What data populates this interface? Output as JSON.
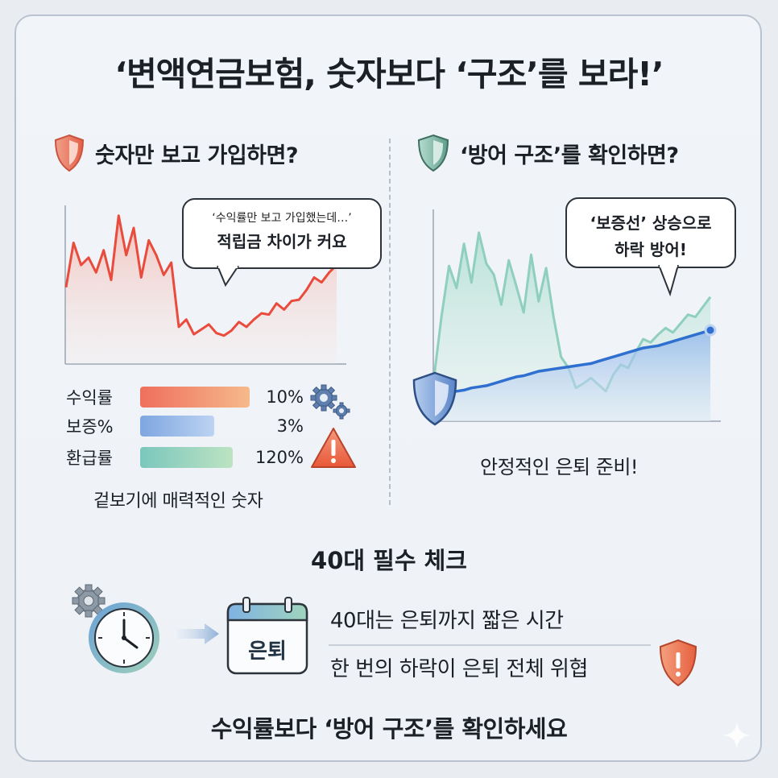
{
  "title": "‘변액연금보험, 숫자보다 ‘구조’를 보라!’",
  "left_panel": {
    "heading": "숫자만 보고 가입하면?",
    "bubble_line1": "‘수익률만 보고 가입했는데…’",
    "bubble_line2": "적립금 차이가 커요",
    "bars": [
      {
        "label": "수익률",
        "value_text": "10%",
        "fill": 0.97,
        "color_from": "#ef6f5e",
        "color_to": "#f6b98a"
      },
      {
        "label": "보증%",
        "value_text": "3%",
        "fill": 0.66,
        "color_from": "#7ea6e0",
        "color_to": "#bcd3f2"
      },
      {
        "label": "환급률",
        "value_text": "120%",
        "fill": 0.82,
        "color_from": "#7ac7bd",
        "color_to": "#bde3c2"
      }
    ],
    "caption": "겉보기에 매력적인 숫자",
    "colors": {
      "line": "#e94b3c",
      "area": "#f7c9c0",
      "shield": "#ef8a72",
      "warning": "#ee6a4d"
    }
  },
  "right_panel": {
    "heading": "‘방어 구조’를 확인하면?",
    "bubble_line1": "‘보증선’ 상승으로",
    "bubble_line2": "하락 방어!",
    "caption": "안정적인 은퇴 준비!",
    "colors": {
      "line": "#2f6fd0",
      "area": "#b9d1ef",
      "green": "#9cd4c4",
      "shield": "#8fbfb0"
    }
  },
  "check": {
    "title": "40대 필수 체크",
    "calendar_label": "은퇴",
    "line1": "40대는 은퇴까지 짧은 시간",
    "line2": "한 번의 하락이 은퇴 전체 위협"
  },
  "footer": "수익률보다 ‘방어 구조’를 확인하세요",
  "chart_data": [
    {
      "type": "line",
      "x": [
        0,
        1,
        2,
        3,
        4,
        5,
        6,
        7,
        8,
        9,
        10,
        11,
        12,
        13,
        14,
        15,
        16,
        17,
        18,
        19,
        20,
        21,
        22,
        23,
        24,
        25,
        26,
        27,
        28,
        29,
        30,
        31,
        32,
        33,
        34,
        35,
        36
      ],
      "series": [
        {
          "values": [
            62,
            98,
            80,
            86,
            74,
            92,
            68,
            120,
            88,
            110,
            70,
            100,
            88,
            72,
            82,
            30,
            36,
            24,
            28,
            32,
            25,
            23,
            27,
            34,
            30,
            36,
            41,
            40,
            49,
            44,
            51,
            52,
            60,
            70,
            66,
            74,
            80
          ]
        }
      ]
    },
    {
      "type": "line",
      "x": [
        0,
        1,
        2,
        3,
        4,
        5,
        6,
        7,
        8,
        9,
        10,
        11,
        12,
        13,
        14,
        15,
        16,
        17,
        18,
        19,
        20,
        21,
        22,
        23,
        24,
        25,
        26,
        27,
        28,
        29,
        30,
        31,
        32,
        33,
        34,
        35,
        36,
        37
      ],
      "series": [
        {
          "values": [
            40,
            95,
            140,
            120,
            160,
            125,
            170,
            142,
            132,
            105,
            145,
            122,
            98,
            150,
            108,
            138,
            94,
            58,
            48,
            30,
            34,
            39,
            33,
            27,
            42,
            51,
            48,
            62,
            74,
            71,
            78,
            84,
            80,
            88,
            96,
            94,
            103,
            112
          ]
        },
        {
          "values": [
            25,
            25,
            26,
            27,
            28,
            30,
            31,
            32,
            34,
            36,
            38,
            40,
            41,
            43,
            45,
            46,
            47,
            48,
            49,
            50,
            51,
            52,
            54,
            56,
            58,
            60,
            62,
            64,
            66,
            67,
            68,
            70,
            72,
            74,
            76,
            78,
            80,
            82
          ]
        }
      ]
    }
  ]
}
